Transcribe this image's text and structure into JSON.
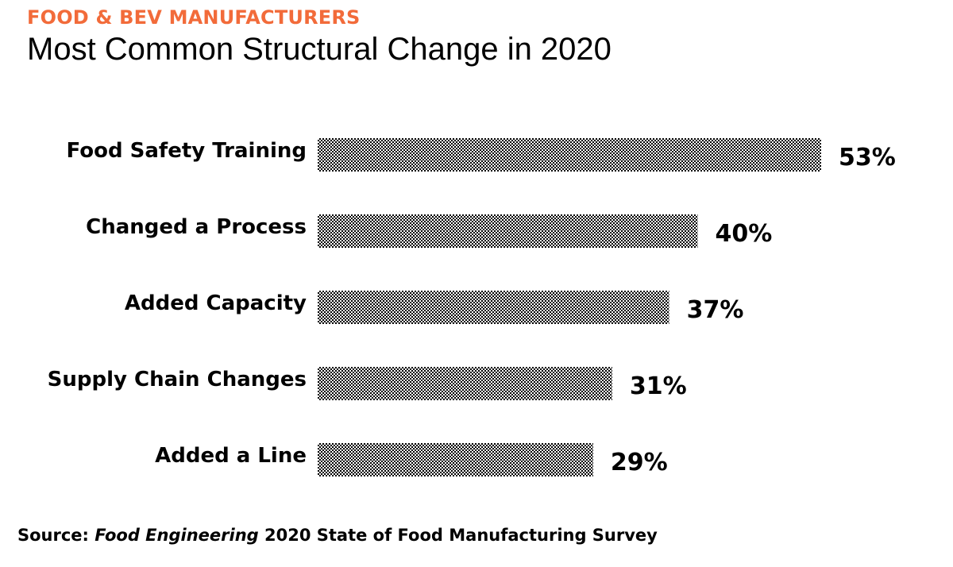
{
  "header": {
    "kicker": "FOOD & BEV MANUFACTURERS",
    "title": "Most Common Structural Change in 2020"
  },
  "colors": {
    "kicker": "#f26b3a",
    "bar_pattern_dark": "#000000",
    "bar_pattern_light": "#ffffff",
    "text": "#000000"
  },
  "chart_data": {
    "type": "bar",
    "orientation": "horizontal",
    "title": "Most Common Structural Change in 2020",
    "categories": [
      "Food Safety Training",
      "Changed a Process",
      "Added Capacity",
      "Supply Chain Changes",
      "Added a Line"
    ],
    "values": [
      53,
      40,
      37,
      31,
      29
    ],
    "value_labels": [
      "53%",
      "40%",
      "37%",
      "31%",
      "29%"
    ],
    "unit": "%",
    "xlim": [
      0,
      53
    ],
    "grid": false,
    "legend": "none"
  },
  "footer": {
    "source_prefix": "Source: ",
    "source_publication": "Food Engineering",
    "source_suffix": " 2020 State of Food Manufacturing Survey"
  }
}
